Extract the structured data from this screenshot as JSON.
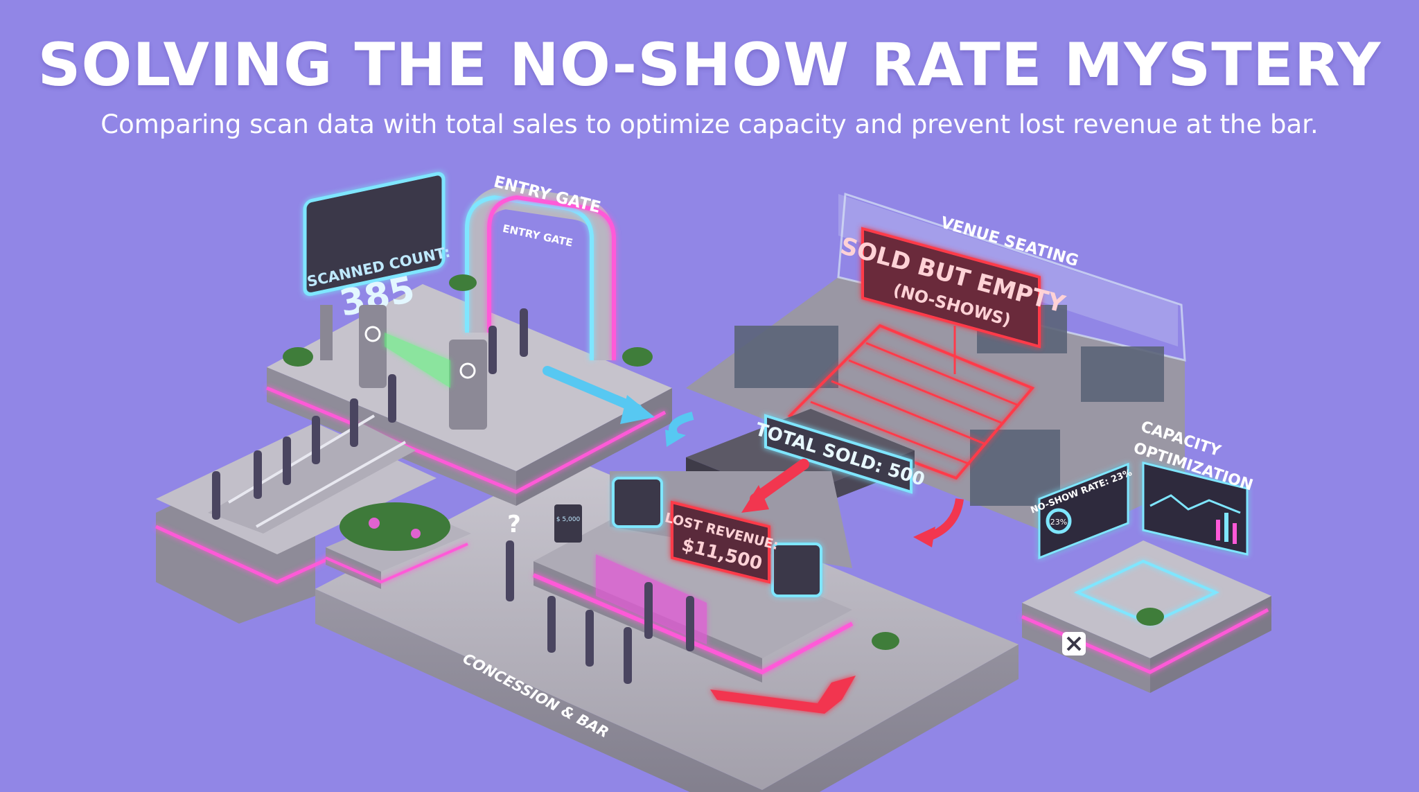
{
  "header": {
    "title": "SOLVING THE NO-SHOW RATE MYSTERY",
    "subtitle": "Comparing scan data with total sales to optimize capacity and prevent lost revenue at the bar."
  },
  "entry": {
    "zone_label": "ENTRY GATE",
    "arch_label": "ENTRY GATE",
    "scanned_label": "SCANNED COUNT:",
    "scanned_value": "385"
  },
  "seating": {
    "zone_label": "VENUE SEATING",
    "empty_label_line1": "SOLD BUT EMPTY",
    "empty_label_line2": "(NO-SHOWS)"
  },
  "stage": {
    "total_sold_label": "TOTAL SOLD: 500"
  },
  "concession": {
    "zone_label": "CONCESSION & BAR",
    "lost_revenue_label": "LOST REVENUE:",
    "lost_revenue_value": "$11,500",
    "register_screen": "$ 5,000",
    "question_mark": "?"
  },
  "capacity": {
    "zone_label_line1": "CAPACITY",
    "zone_label_line2": "OPTIMIZATION",
    "no_show_rate_label": "NO-SHOW RATE: 23%",
    "gauge_value": "23%"
  },
  "colors": {
    "background": "#9186e6",
    "neon_pink": "#ff5ad8",
    "neon_cyan": "#7fe6ff",
    "neon_red": "#ff3a4a",
    "arrow_blue": "#57c8f2",
    "arrow_red": "#f2364f",
    "platform": "#a9a6b3"
  }
}
